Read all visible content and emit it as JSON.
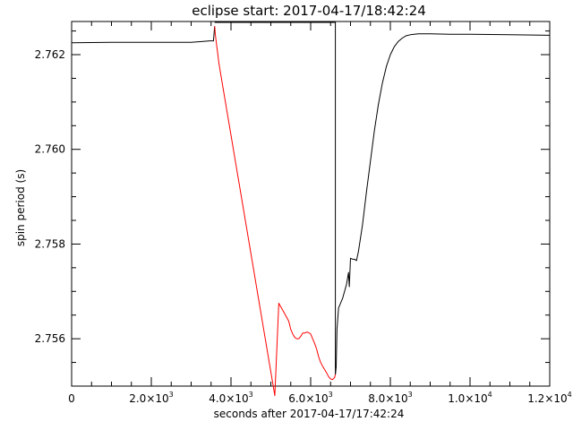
{
  "chart_data": {
    "type": "line",
    "title": "eclipse start: 2017-04-17/18:42:24",
    "xlabel": "seconds after 2017-04-17/17:42:24",
    "ylabel": "spin period (s)",
    "xlim": [
      0,
      12000
    ],
    "ylim": [
      2.755,
      2.7627
    ],
    "x_ticks": [
      {
        "value": 0,
        "mantissa": "0",
        "exponent": ""
      },
      {
        "value": 2000,
        "mantissa": "2.0×10",
        "exponent": "3"
      },
      {
        "value": 4000,
        "mantissa": "4.0×10",
        "exponent": "3"
      },
      {
        "value": 6000,
        "mantissa": "6.0×10",
        "exponent": "3"
      },
      {
        "value": 8000,
        "mantissa": "8.0×10",
        "exponent": "3"
      },
      {
        "value": 10000,
        "mantissa": "1.0×10",
        "exponent": "4"
      },
      {
        "value": 12000,
        "mantissa": "1.2×10",
        "exponent": "4"
      }
    ],
    "y_ticks": [
      {
        "value": 2.756,
        "label": "2.756"
      },
      {
        "value": 2.758,
        "label": "2.758"
      },
      {
        "value": 2.76,
        "label": "2.760"
      },
      {
        "value": 2.762,
        "label": "2.762"
      }
    ],
    "grid": false,
    "colors": {
      "pre_post_eclipse": "#000000",
      "eclipse": "#ff0000"
    },
    "series": [
      {
        "color": "#000000",
        "points": [
          [
            0,
            2.76225
          ],
          [
            1000,
            2.76226
          ],
          [
            2000,
            2.76226
          ],
          [
            3000,
            2.76226
          ],
          [
            3300,
            2.76228
          ],
          [
            3460,
            2.76229
          ],
          [
            3560,
            2.76229
          ],
          [
            3590,
            2.7626
          ]
        ]
      },
      {
        "color": "#000000",
        "points": [
          [
            3590,
            2.76268
          ],
          [
            6620,
            2.76268
          ],
          [
            6620,
            2.75525
          ]
        ]
      },
      {
        "color": "#ff0000",
        "points": [
          [
            3590,
            2.7626
          ],
          [
            3610,
            2.7624
          ],
          [
            3700,
            2.7618
          ],
          [
            3800,
            2.7613
          ],
          [
            3900,
            2.7608
          ],
          [
            4000,
            2.7603
          ],
          [
            4100,
            2.7598
          ],
          [
            4200,
            2.7593
          ],
          [
            4300,
            2.7588
          ],
          [
            4400,
            2.7583
          ],
          [
            4500,
            2.7578
          ],
          [
            4600,
            2.7573
          ],
          [
            4700,
            2.7568
          ],
          [
            4800,
            2.7563
          ],
          [
            4900,
            2.7558
          ],
          [
            5000,
            2.7553
          ],
          [
            5100,
            2.7548
          ],
          [
            5200,
            2.75675
          ],
          [
            5300,
            2.7566
          ],
          [
            5400,
            2.75645
          ],
          [
            5450,
            2.75637
          ],
          [
            5500,
            2.7562
          ],
          [
            5550,
            2.7561
          ],
          [
            5600,
            2.75603
          ],
          [
            5650,
            2.756
          ],
          [
            5700,
            2.756
          ],
          [
            5750,
            2.75605
          ],
          [
            5800,
            2.75612
          ],
          [
            5850,
            2.75612
          ],
          [
            5900,
            2.75614
          ],
          [
            5950,
            2.75613
          ],
          [
            6000,
            2.7561
          ],
          [
            6050,
            2.756
          ],
          [
            6100,
            2.7559
          ],
          [
            6150,
            2.75578
          ],
          [
            6200,
            2.75562
          ],
          [
            6250,
            2.7555
          ],
          [
            6300,
            2.75542
          ],
          [
            6350,
            2.75535
          ],
          [
            6400,
            2.75528
          ],
          [
            6450,
            2.7552
          ],
          [
            6500,
            2.75515
          ],
          [
            6550,
            2.75514
          ],
          [
            6600,
            2.75518
          ],
          [
            6620,
            2.75525
          ]
        ]
      },
      {
        "color": "#000000",
        "points": [
          [
            6620,
            2.75525
          ],
          [
            6640,
            2.7554
          ],
          [
            6660,
            2.7562
          ],
          [
            6700,
            2.75665
          ],
          [
            6800,
            2.75685
          ],
          [
            6900,
            2.75715
          ],
          [
            6950,
            2.7574
          ],
          [
            6970,
            2.7571
          ],
          [
            7000,
            2.7577
          ],
          [
            7050,
            2.75768
          ],
          [
            7100,
            2.75768
          ],
          [
            7150,
            2.75765
          ],
          [
            7200,
            2.75785
          ],
          [
            7300,
            2.7584
          ],
          [
            7400,
            2.7591
          ],
          [
            7500,
            2.75975
          ],
          [
            7600,
            2.7604
          ],
          [
            7700,
            2.76095
          ],
          [
            7800,
            2.7614
          ],
          [
            7900,
            2.76175
          ],
          [
            8000,
            2.762
          ],
          [
            8100,
            2.76217
          ],
          [
            8200,
            2.76228
          ],
          [
            8300,
            2.76235
          ],
          [
            8400,
            2.7624
          ],
          [
            8500,
            2.76242
          ],
          [
            8700,
            2.76244
          ],
          [
            9000,
            2.76244
          ],
          [
            9500,
            2.76243
          ],
          [
            10000,
            2.76243
          ],
          [
            11000,
            2.76242
          ],
          [
            12000,
            2.76241
          ]
        ]
      }
    ]
  }
}
